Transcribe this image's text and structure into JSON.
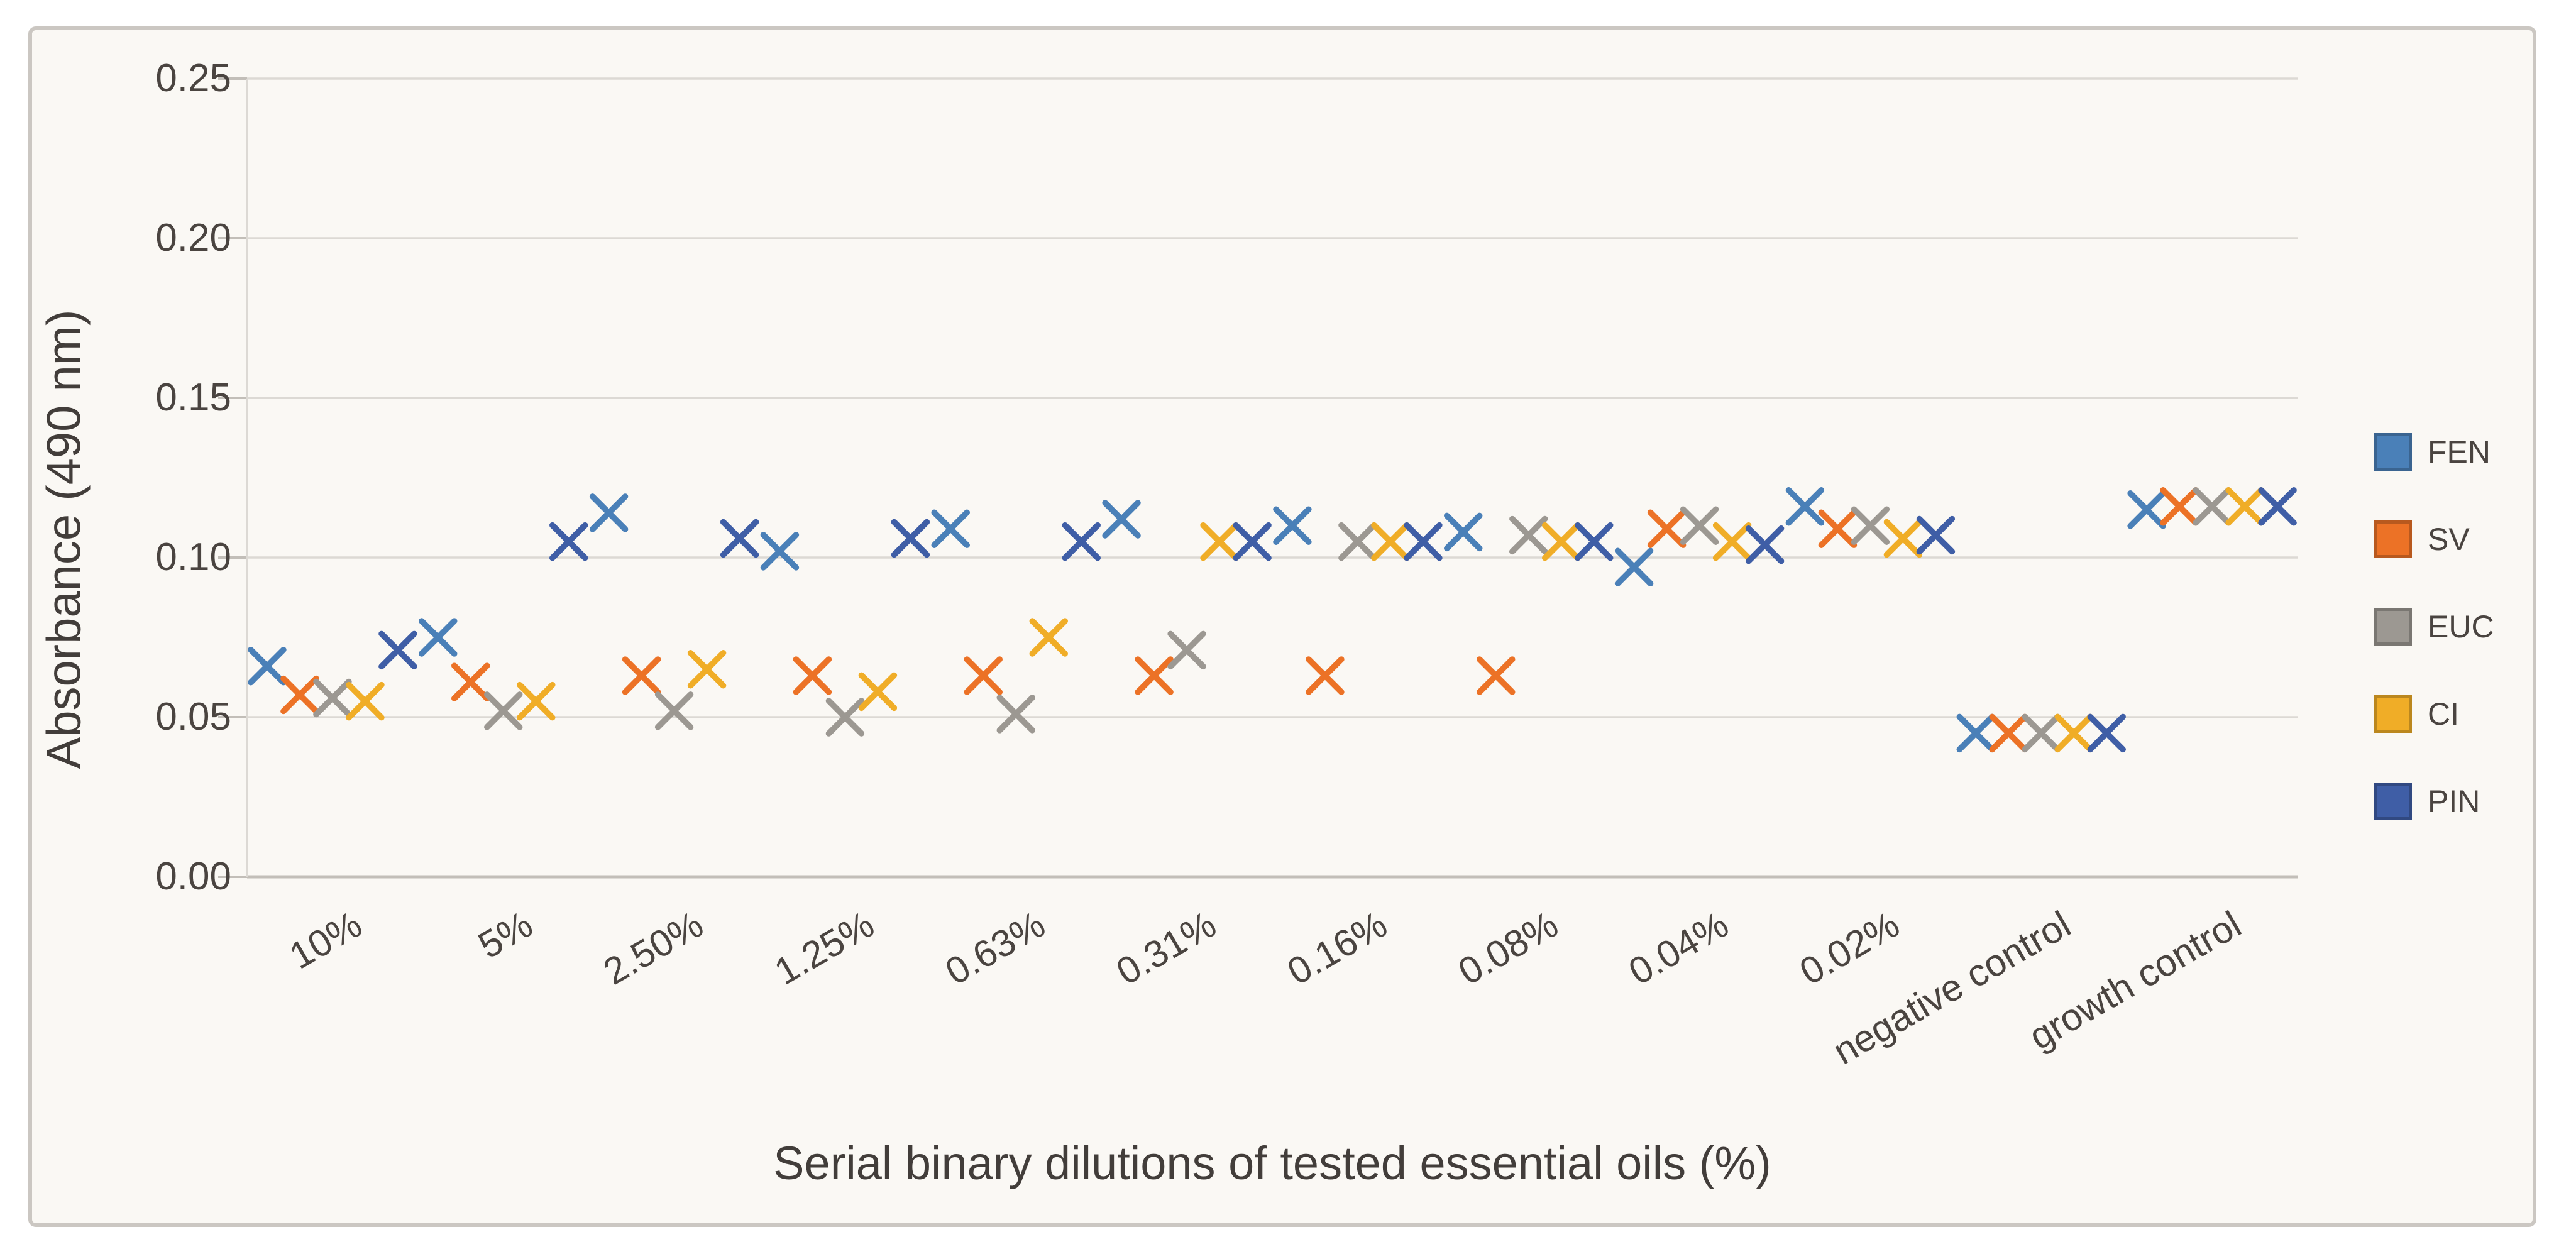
{
  "figure": {
    "background_color": "#faf8f4",
    "border_color": "#cbc7c2",
    "text_color": "#4a4440",
    "gridline_color": "#dcd9d4",
    "axis_line_color": "#c2beb8"
  },
  "chart_data": {
    "type": "scatter",
    "marker_glyph": "x",
    "title": "",
    "xlabel": "Serial binary dilutions of tested essential oils (%)",
    "ylabel": "Absorbance (490 nm)",
    "ylim": [
      0,
      0.25
    ],
    "y_tick_values": [
      0,
      0.05,
      0.1,
      0.15,
      0.2,
      0.25
    ],
    "y_tick_labels": [
      "0.00",
      "0.05",
      "0.10",
      "0.15",
      "0.20",
      "0.25"
    ],
    "grid": "horizontal",
    "legend_position": "right",
    "x_label_rotation_deg": -30,
    "categories": [
      "10%",
      "5%",
      "2.50%",
      "1.25%",
      "0.63%",
      "0.31%",
      "0.16%",
      "0.08%",
      "0.04%",
      "0.02%",
      "negative control",
      "growth control"
    ],
    "series": [
      {
        "name": "FEN",
        "color": "#4a80b8",
        "values": [
          0.066,
          0.075,
          0.114,
          0.102,
          0.109,
          0.112,
          0.11,
          0.108,
          0.097,
          0.116,
          0.045,
          0.115
        ]
      },
      {
        "name": "SV",
        "color": "#ec7226",
        "values": [
          0.057,
          0.061,
          0.063,
          0.063,
          0.063,
          0.063,
          0.063,
          0.063,
          0.109,
          0.109,
          0.045,
          0.116
        ]
      },
      {
        "name": "EUC",
        "color": "#9c9892",
        "values": [
          0.056,
          0.052,
          0.052,
          0.05,
          0.051,
          0.071,
          0.105,
          0.107,
          0.11,
          0.11,
          0.045,
          0.116
        ]
      },
      {
        "name": "CI",
        "color": "#f0ad27",
        "values": [
          0.055,
          0.055,
          0.065,
          0.058,
          0.075,
          0.105,
          0.105,
          0.105,
          0.105,
          0.106,
          0.045,
          0.116
        ]
      },
      {
        "name": "PIN",
        "color": "#3f5ea6",
        "values": [
          0.071,
          0.105,
          0.106,
          0.106,
          0.105,
          0.105,
          0.105,
          0.105,
          0.104,
          0.107,
          0.045,
          0.116
        ]
      }
    ]
  }
}
